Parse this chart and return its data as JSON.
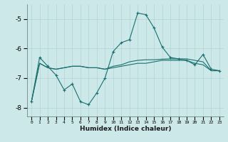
{
  "xlabel": "Humidex (Indice chaleur)",
  "ylabel": "",
  "background_color": "#cce8e8",
  "grid_color": "#b0d4d4",
  "line_color": "#1a7070",
  "x_values": [
    0,
    1,
    2,
    3,
    4,
    5,
    6,
    7,
    8,
    9,
    10,
    11,
    12,
    13,
    14,
    15,
    16,
    17,
    18,
    19,
    20,
    21,
    22,
    23
  ],
  "line1": [
    -7.8,
    -6.3,
    -6.6,
    -6.9,
    -7.4,
    -7.2,
    -7.8,
    -7.9,
    -7.5,
    -7.0,
    -6.1,
    -5.8,
    -5.7,
    -4.8,
    -4.85,
    -5.3,
    -5.95,
    -6.3,
    -6.35,
    -6.4,
    -6.55,
    -6.2,
    -6.7,
    -6.75
  ],
  "line2": [
    -7.8,
    -6.5,
    -6.65,
    -6.7,
    -6.65,
    -6.6,
    -6.6,
    -6.65,
    -6.65,
    -6.7,
    -6.65,
    -6.6,
    -6.55,
    -6.5,
    -6.5,
    -6.45,
    -6.4,
    -6.4,
    -6.4,
    -6.4,
    -6.5,
    -6.55,
    -6.75,
    -6.75
  ],
  "line3": [
    -7.8,
    -6.5,
    -6.65,
    -6.7,
    -6.65,
    -6.6,
    -6.6,
    -6.65,
    -6.65,
    -6.7,
    -6.6,
    -6.55,
    -6.45,
    -6.4,
    -6.38,
    -6.38,
    -6.36,
    -6.35,
    -6.35,
    -6.35,
    -6.4,
    -6.45,
    -6.75,
    -6.75
  ],
  "ylim": [
    -8.3,
    -4.5
  ],
  "yticks": [
    -8,
    -7,
    -6,
    -5
  ],
  "xlim": [
    -0.5,
    23.5
  ],
  "xtick_labels": [
    "0",
    "1",
    "2",
    "3",
    "4",
    "5",
    "6",
    "7",
    "8",
    "9",
    "10",
    "11",
    "12",
    "13",
    "14",
    "15",
    "16",
    "17",
    "18",
    "19",
    "20",
    "21",
    "22",
    "23"
  ]
}
